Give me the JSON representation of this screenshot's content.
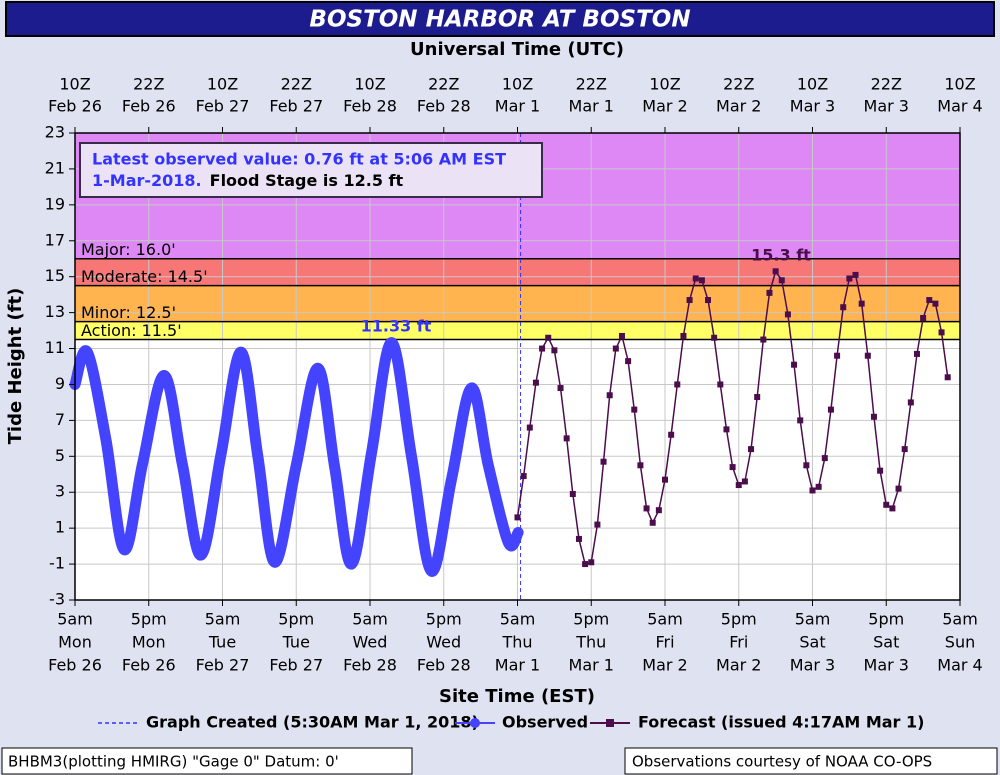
{
  "chart_data": {
    "type": "line",
    "title": "BOSTON HARBOR AT BOSTON",
    "x2_axis_label": "Universal Time (UTC)",
    "x_axis_label": "Site Time (EST)",
    "y_axis_label": "Tide Height (ft)",
    "xlim": [
      "2018-02-26T05:00-05:00",
      "2018-03-04T05:00-05:00"
    ],
    "ylim": [
      -3,
      23
    ],
    "yticks": [
      -3,
      -1,
      1,
      3,
      5,
      7,
      9,
      11,
      13,
      15,
      17,
      19,
      21,
      23
    ],
    "grid": true,
    "xticks": [
      {
        "value": "2018-02-26T05:00-05:00",
        "label": [
          "5am",
          "Mon",
          "Feb 26"
        ]
      },
      {
        "value": "2018-02-26T17:00-05:00",
        "label": [
          "5pm",
          "Mon",
          "Feb 26"
        ]
      },
      {
        "value": "2018-02-27T05:00-05:00",
        "label": [
          "5am",
          "Tue",
          "Feb 27"
        ]
      },
      {
        "value": "2018-02-27T17:00-05:00",
        "label": [
          "5pm",
          "Tue",
          "Feb 27"
        ]
      },
      {
        "value": "2018-02-28T05:00-05:00",
        "label": [
          "5am",
          "Wed",
          "Feb 28"
        ]
      },
      {
        "value": "2018-02-28T17:00-05:00",
        "label": [
          "5pm",
          "Wed",
          "Feb 28"
        ]
      },
      {
        "value": "2018-03-01T05:00-05:00",
        "label": [
          "5am",
          "Thu",
          "Mar 1"
        ]
      },
      {
        "value": "2018-03-01T17:00-05:00",
        "label": [
          "5pm",
          "Thu",
          "Mar 1"
        ]
      },
      {
        "value": "2018-03-02T05:00-05:00",
        "label": [
          "5am",
          "Fri",
          "Mar 2"
        ]
      },
      {
        "value": "2018-03-02T17:00-05:00",
        "label": [
          "5pm",
          "Fri",
          "Mar 2"
        ]
      },
      {
        "value": "2018-03-03T05:00-05:00",
        "label": [
          "5am",
          "Sat",
          "Mar 3"
        ]
      },
      {
        "value": "2018-03-03T17:00-05:00",
        "label": [
          "5pm",
          "Sat",
          "Mar 3"
        ]
      },
      {
        "value": "2018-03-04T05:00-05:00",
        "label": [
          "5am",
          "Sun",
          "Mar 4"
        ]
      }
    ],
    "x2ticks": [
      {
        "value": "2018-02-26T10:00Z",
        "label": [
          "10Z",
          "Feb 26"
        ]
      },
      {
        "value": "2018-02-26T22:00Z",
        "label": [
          "22Z",
          "Feb 26"
        ]
      },
      {
        "value": "2018-02-27T10:00Z",
        "label": [
          "10Z",
          "Feb 27"
        ]
      },
      {
        "value": "2018-02-27T22:00Z",
        "label": [
          "22Z",
          "Feb 27"
        ]
      },
      {
        "value": "2018-02-28T10:00Z",
        "label": [
          "10Z",
          "Feb 28"
        ]
      },
      {
        "value": "2018-02-28T22:00Z",
        "label": [
          "22Z",
          "Feb 28"
        ]
      },
      {
        "value": "2018-03-01T10:00Z",
        "label": [
          "10Z",
          "Mar 1"
        ]
      },
      {
        "value": "2018-03-01T22:00Z",
        "label": [
          "22Z",
          "Mar 1"
        ]
      },
      {
        "value": "2018-03-02T10:00Z",
        "label": [
          "10Z",
          "Mar 2"
        ]
      },
      {
        "value": "2018-03-02T22:00Z",
        "label": [
          "22Z",
          "Mar 2"
        ]
      },
      {
        "value": "2018-03-03T10:00Z",
        "label": [
          "10Z",
          "Mar 3"
        ]
      },
      {
        "value": "2018-03-03T22:00Z",
        "label": [
          "22Z",
          "Mar 3"
        ]
      },
      {
        "value": "2018-03-04T10:00Z",
        "label": [
          "10Z",
          "Mar 4"
        ]
      }
    ],
    "flood_stages": [
      {
        "label": "Action: 11.5'",
        "value": 11.5,
        "color": "#ffff66"
      },
      {
        "label": "Minor: 12.5'",
        "value": 12.5,
        "color": "#ffb44f"
      },
      {
        "label": "Moderate: 14.5'",
        "value": 14.5,
        "color": "#f77777"
      },
      {
        "label": "Major: 16.0'",
        "value": 16.0,
        "color": "#dd88f5"
      }
    ],
    "graph_created": {
      "label": "Graph Created (5:30AM Mar 1, 2018)",
      "x": "2018-03-01T05:30-05:00",
      "color": "#3333ff"
    },
    "info": {
      "observed": [
        "Latest observed value: 0.76 ft at 5:06 AM EST",
        "1-Mar-2018."
      ],
      "flood": "Flood Stage is 12.5 ft"
    },
    "annotations": [
      "11.33 ft",
      "15.3 ft"
    ],
    "series": [
      {
        "name": "Observed",
        "color": "#4444ff",
        "x": [
          "2018-02-26T05:00-05:00",
          "2018-02-26T07:00-05:00",
          "2018-02-26T10:00-05:00",
          "2018-02-26T13:00-05:00",
          "2018-02-26T16:00-05:00",
          "2018-02-26T19:30-05:00",
          "2018-02-26T22:30-05:00",
          "2018-02-27T01:30-05:00",
          "2018-02-27T04:45-05:00",
          "2018-02-27T08:00-05:00",
          "2018-02-27T10:45-05:00",
          "2018-02-27T13:30-05:00",
          "2018-02-27T17:00-05:00",
          "2018-02-27T20:30-05:00",
          "2018-02-27T23:15-05:00",
          "2018-02-28T02:00-05:00",
          "2018-02-28T05:15-05:00",
          "2018-02-28T08:30-05:00",
          "2018-02-28T11:45-05:00",
          "2018-02-28T15:00-05:00",
          "2018-02-28T18:15-05:00",
          "2018-02-28T21:30-05:00",
          "2018-03-01T00:15-05:00",
          "2018-03-01T03:30-05:00",
          "2018-03-01T05:06-05:00"
        ],
        "values": [
          9.0,
          10.8,
          6.0,
          -0.2,
          4.6,
          9.5,
          4.5,
          -0.5,
          5.1,
          10.8,
          5.0,
          -0.9,
          4.5,
          9.9,
          4.4,
          -1.0,
          5.2,
          11.33,
          5.0,
          -1.4,
          3.7,
          8.8,
          4.5,
          0.2,
          0.76
        ]
      },
      {
        "name": "Forecast (issued 4:17AM Mar 1)",
        "color": "#4b0d4b",
        "x": [
          "2018-03-01T05:00-05:00",
          "2018-03-01T06:00-05:00",
          "2018-03-01T07:00-05:00",
          "2018-03-01T08:00-05:00",
          "2018-03-01T09:00-05:00",
          "2018-03-01T10:00-05:00",
          "2018-03-01T11:00-05:00",
          "2018-03-01T12:00-05:00",
          "2018-03-01T13:00-05:00",
          "2018-03-01T14:00-05:00",
          "2018-03-01T15:00-05:00",
          "2018-03-01T16:00-05:00",
          "2018-03-01T17:00-05:00",
          "2018-03-01T18:00-05:00",
          "2018-03-01T19:00-05:00",
          "2018-03-01T20:00-05:00",
          "2018-03-01T21:00-05:00",
          "2018-03-01T22:00-05:00",
          "2018-03-01T23:00-05:00",
          "2018-03-02T00:00-05:00",
          "2018-03-02T01:00-05:00",
          "2018-03-02T02:00-05:00",
          "2018-03-02T03:00-05:00",
          "2018-03-02T04:00-05:00",
          "2018-03-02T05:00-05:00",
          "2018-03-02T06:00-05:00",
          "2018-03-02T07:00-05:00",
          "2018-03-02T08:00-05:00",
          "2018-03-02T09:00-05:00",
          "2018-03-02T10:00-05:00",
          "2018-03-02T11:00-05:00",
          "2018-03-02T12:00-05:00",
          "2018-03-02T13:00-05:00",
          "2018-03-02T14:00-05:00",
          "2018-03-02T15:00-05:00",
          "2018-03-02T16:00-05:00",
          "2018-03-02T17:00-05:00",
          "2018-03-02T18:00-05:00",
          "2018-03-02T19:00-05:00",
          "2018-03-02T20:00-05:00",
          "2018-03-02T21:00-05:00",
          "2018-03-02T22:00-05:00",
          "2018-03-02T23:00-05:00",
          "2018-03-03T00:00-05:00",
          "2018-03-03T01:00-05:00",
          "2018-03-03T02:00-05:00",
          "2018-03-03T03:00-05:00",
          "2018-03-03T04:00-05:00",
          "2018-03-03T05:00-05:00",
          "2018-03-03T06:00-05:00",
          "2018-03-03T07:00-05:00",
          "2018-03-03T08:00-05:00",
          "2018-03-03T09:00-05:00",
          "2018-03-03T10:00-05:00",
          "2018-03-03T11:00-05:00",
          "2018-03-03T12:00-05:00",
          "2018-03-03T13:00-05:00",
          "2018-03-03T14:00-05:00",
          "2018-03-03T15:00-05:00",
          "2018-03-03T16:00-05:00",
          "2018-03-03T17:00-05:00",
          "2018-03-03T18:00-05:00",
          "2018-03-03T19:00-05:00",
          "2018-03-03T20:00-05:00",
          "2018-03-03T21:00-05:00",
          "2018-03-03T22:00-05:00",
          "2018-03-03T23:00-05:00",
          "2018-03-04T00:00-05:00",
          "2018-03-04T01:00-05:00",
          "2018-03-04T02:00-05:00",
          "2018-03-04T03:00-05:00"
        ],
        "values": [
          1.6,
          3.9,
          6.6,
          9.1,
          11.0,
          11.6,
          10.9,
          8.8,
          6.0,
          2.9,
          0.4,
          -1.0,
          -0.9,
          1.2,
          4.7,
          8.4,
          11.0,
          11.7,
          10.3,
          7.6,
          4.5,
          2.1,
          1.3,
          2.0,
          3.7,
          6.2,
          9.0,
          11.7,
          13.7,
          14.9,
          14.8,
          13.7,
          11.6,
          9.0,
          6.5,
          4.4,
          3.4,
          3.6,
          5.4,
          8.3,
          11.5,
          14.1,
          15.3,
          14.8,
          12.9,
          10.1,
          7.0,
          4.5,
          3.1,
          3.3,
          4.9,
          7.6,
          10.6,
          13.3,
          14.9,
          15.1,
          13.5,
          10.6,
          7.2,
          4.2,
          2.3,
          2.1,
          3.2,
          5.4,
          8.0,
          10.7,
          12.7,
          13.7,
          13.5,
          11.9,
          9.4
        ]
      }
    ],
    "footer": [
      "BHBM3(plotting HMIRG) \"Gage 0\" Datum: 0'",
      "Observations courtesy of NOAA CO-OPS"
    ]
  }
}
